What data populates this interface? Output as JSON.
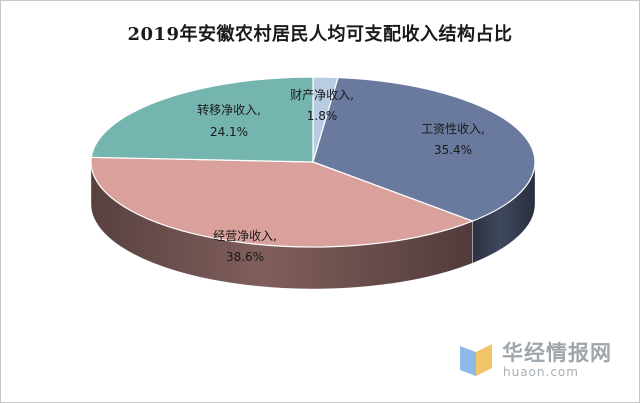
{
  "chart_data": {
    "type": "pie",
    "title": "2019年安徽农村居民人均可支配收入结构占比",
    "slices": [
      {
        "name": "财产净收入",
        "value": 1.8,
        "label": "1.8%",
        "color": "#b8cce4"
      },
      {
        "name": "工资性收入",
        "value": 35.4,
        "label": "35.4%",
        "color": "#6a7a9e"
      },
      {
        "name": "经营净收入",
        "value": 38.6,
        "label": "38.6%",
        "color": "#d9a09c"
      },
      {
        "name": "转移净收入",
        "value": 24.1,
        "label": "24.1%",
        "color": "#74b5b0"
      }
    ],
    "legend": "none",
    "style": "3d"
  },
  "watermark": {
    "name": "华经情报网",
    "url": "huaon.com"
  }
}
